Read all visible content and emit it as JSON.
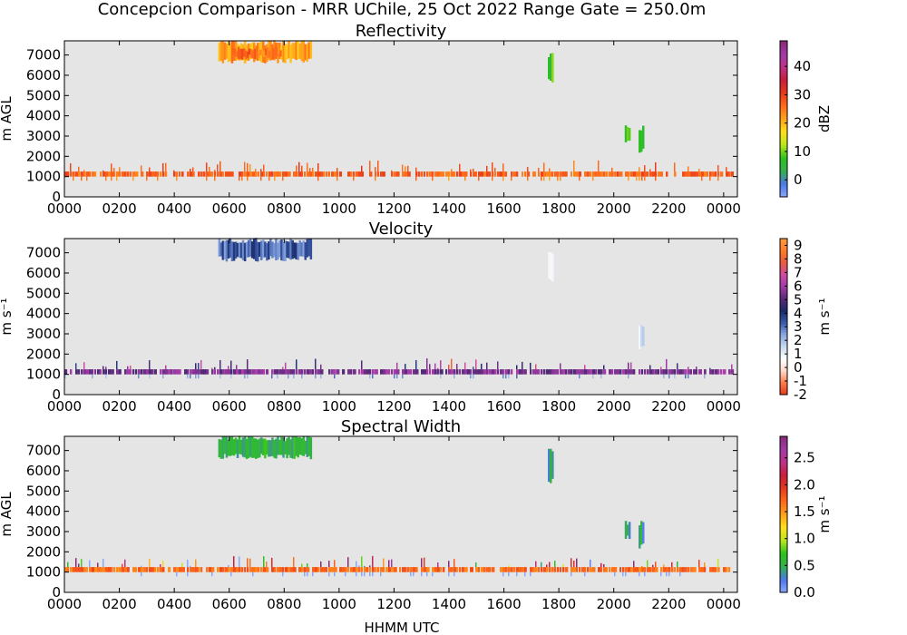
{
  "figure": {
    "suptitle": "Concepcion Comparison - MRR UChile, 25 Oct 2022 Range Gate = 250.0m",
    "xlabel": "HHMM UTC"
  },
  "colors": {
    "panel_background": "#e5e5e5",
    "frame": "#000000"
  },
  "chart_data": [
    {
      "type": "heatmap",
      "title": "Reflectivity",
      "ylabel": "m AGL",
      "x_ticks": [
        "0000",
        "0200",
        "0400",
        "0600",
        "0800",
        "1000",
        "1200",
        "1400",
        "1600",
        "1800",
        "2000",
        "2200",
        "0000"
      ],
      "y_ticks": [
        0,
        1000,
        2000,
        3000,
        4000,
        5000,
        6000,
        7000
      ],
      "xlim_hours": [
        0,
        24.5
      ],
      "ylim": [
        0,
        7700
      ],
      "colorbar": {
        "label": "dBZ",
        "range": [
          -6,
          49
        ],
        "ticks": [
          0,
          10,
          20,
          30,
          40
        ],
        "colors": [
          "#8aa7ff",
          "#4a78e8",
          "#35b04a",
          "#2cc21c",
          "#b8e81a",
          "#ffe01a",
          "#ffa21a",
          "#ff6a1a",
          "#e83a1a",
          "#c81e3a",
          "#c0308a",
          "#a03aa8",
          "#8a2a78"
        ]
      },
      "features": [
        {
          "name": "upper cloud",
          "t_start": 5.6,
          "t_end": 9.0,
          "z_bottom": 6700,
          "z_top": 7600,
          "level": 22
        },
        {
          "name": "core",
          "t_start": 6.1,
          "t_end": 7.9,
          "z_bottom": 6900,
          "z_top": 7300,
          "level": 26
        },
        {
          "name": "fall streak 1",
          "t_start": 17.6,
          "t_end": 17.8,
          "z_bottom": 5700,
          "z_top": 7000,
          "level": 8
        },
        {
          "name": "fall streak 2",
          "t_start": 20.4,
          "t_end": 20.6,
          "z_bottom": 2700,
          "z_top": 3400,
          "level": 8
        },
        {
          "name": "fall streak 3",
          "t_start": 20.9,
          "t_end": 21.1,
          "z_bottom": 2300,
          "z_top": 3400,
          "level": 8
        },
        {
          "name": "surface band",
          "t_start": 0.0,
          "t_end": 24.3,
          "z_bottom": 900,
          "z_top": 1300,
          "level": 27
        }
      ]
    },
    {
      "type": "heatmap",
      "title": "Velocity",
      "ylabel": "m s⁻¹",
      "x_ticks": [
        "0000",
        "0200",
        "0400",
        "0600",
        "0800",
        "1000",
        "1200",
        "1400",
        "1600",
        "1800",
        "2000",
        "2200",
        "0000"
      ],
      "y_ticks": [
        0,
        1000,
        2000,
        3000,
        4000,
        5000,
        6000,
        7000
      ],
      "xlim_hours": [
        0,
        24.5
      ],
      "ylim": [
        0,
        7700
      ],
      "colorbar": {
        "label": "m s⁻¹",
        "range": [
          -2,
          9.5
        ],
        "ticks": [
          -2,
          -1,
          0,
          1,
          2,
          3,
          4,
          5,
          6,
          7,
          8,
          9
        ],
        "colors": [
          "#e83a1a",
          "#ff7a4a",
          "#ffd8c8",
          "#ffffff",
          "#c8d8f0",
          "#8aa7e0",
          "#3a5aa8",
          "#1a2a68",
          "#5a2a78",
          "#a03aa8",
          "#d04aa8",
          "#e85a3a",
          "#ff7a2a",
          "#ff9a3a"
        ]
      },
      "features": [
        {
          "name": "upper cloud",
          "t_start": 5.6,
          "t_end": 9.0,
          "z_bottom": 6700,
          "z_top": 7600,
          "level": 3.3
        },
        {
          "name": "fall streak 1",
          "t_start": 17.6,
          "t_end": 17.8,
          "z_bottom": 5700,
          "z_top": 7000,
          "level": 1.2
        },
        {
          "name": "fall streak 3",
          "t_start": 20.9,
          "t_end": 21.1,
          "z_bottom": 2300,
          "z_top": 3400,
          "level": 1.0
        },
        {
          "name": "surface band",
          "t_start": 0.0,
          "t_end": 24.3,
          "z_bottom": 900,
          "z_top": 1300,
          "level": 5.5
        }
      ]
    },
    {
      "type": "heatmap",
      "title": "Spectral Width",
      "ylabel": "m AGL",
      "x_ticks": [
        "0000",
        "0200",
        "0400",
        "0600",
        "0800",
        "1000",
        "1200",
        "1400",
        "1600",
        "1800",
        "2000",
        "2200",
        "0000"
      ],
      "y_ticks": [
        0,
        1000,
        2000,
        3000,
        4000,
        5000,
        6000,
        7000
      ],
      "xlim_hours": [
        0,
        24.5
      ],
      "ylim": [
        0,
        7700
      ],
      "colorbar": {
        "label": "m s⁻¹",
        "range": [
          0,
          2.9
        ],
        "ticks": [
          0.0,
          0.5,
          1.0,
          1.5,
          2.0,
          2.5
        ],
        "colors": [
          "#8aa7ff",
          "#4a78e8",
          "#35b04a",
          "#2cc21c",
          "#b8e81a",
          "#ffe01a",
          "#ffa21a",
          "#ff6a1a",
          "#e83a1a",
          "#c81e3a",
          "#c0308a",
          "#a03aa8",
          "#8a2a78"
        ]
      },
      "features": [
        {
          "name": "upper cloud",
          "t_start": 5.6,
          "t_end": 9.0,
          "z_bottom": 6700,
          "z_top": 7600,
          "level": 0.55
        },
        {
          "name": "fall streak 1",
          "t_start": 17.6,
          "t_end": 17.8,
          "z_bottom": 5500,
          "z_top": 7000,
          "level": 0.4
        },
        {
          "name": "fall streak 2",
          "t_start": 20.4,
          "t_end": 20.6,
          "z_bottom": 2700,
          "z_top": 3400,
          "level": 0.4
        },
        {
          "name": "fall streak 3",
          "t_start": 20.9,
          "t_end": 21.1,
          "z_bottom": 2300,
          "z_top": 3400,
          "level": 0.4
        },
        {
          "name": "surface band",
          "t_start": 0.0,
          "t_end": 24.3,
          "z_bottom": 900,
          "z_top": 1300,
          "level": 1.7
        }
      ]
    }
  ]
}
